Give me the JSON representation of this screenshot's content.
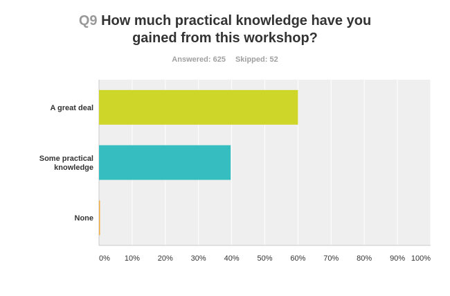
{
  "question": {
    "number": "Q9",
    "text_line1": "How much practical knowledge have you",
    "text_line2": "gained from this workshop?"
  },
  "stats": {
    "answered_label": "Answered: 625",
    "skipped_label": "Skipped: 52"
  },
  "colors": {
    "plot_background": "#efefef",
    "gridline": "#ffffff",
    "axis": "#c8c8c8"
  },
  "chart_data": {
    "type": "bar",
    "orientation": "horizontal",
    "categories": [
      [
        "A great deal"
      ],
      [
        "Some practical",
        "knowledge"
      ],
      [
        "None"
      ]
    ],
    "values": [
      60,
      39.7,
      0.3
    ],
    "colors": [
      "#cfd62a",
      "#35bdbf",
      "#f2a93b"
    ],
    "xlim": [
      0,
      100
    ],
    "x_ticks": [
      "0%",
      "10%",
      "20%",
      "30%",
      "40%",
      "50%",
      "60%",
      "70%",
      "80%",
      "90%",
      "100%"
    ],
    "grid": true
  }
}
